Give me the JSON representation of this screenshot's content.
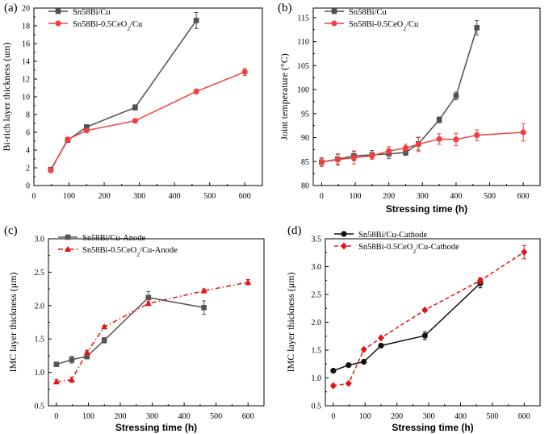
{
  "chart_data": [
    {
      "panel": "(a)",
      "type": "line",
      "xlabel": "Stressing time (h)",
      "ylabel": "Bi-rich layer thickness (um)",
      "xlim": [
        0,
        650
      ],
      "ylim": [
        0,
        20
      ],
      "xticks": [
        0,
        100,
        200,
        300,
        400,
        500,
        600
      ],
      "yticks": [
        0,
        2,
        4,
        6,
        8,
        10,
        12,
        14,
        16,
        18,
        20
      ],
      "legend": "top-left",
      "series": [
        {
          "name": "Sn58Bi/Cu",
          "label": "Sn58Bi/Cu",
          "color": "#505050",
          "marker": "square",
          "dash": "solid",
          "x": [
            48,
            96,
            150,
            288,
            462
          ],
          "y": [
            1.8,
            5.1,
            6.6,
            8.8,
            18.6
          ],
          "err": [
            0.2,
            0.2,
            0.25,
            0.3,
            0.9
          ]
        },
        {
          "name": "Sn58Bi-0.5CeO2/Cu",
          "label": "Sn58Bi-0.5CeO",
          "sub": "2",
          "suffix": "/Cu",
          "color": "#f04040",
          "marker": "circle",
          "dash": "solid",
          "x": [
            48,
            96,
            150,
            288,
            462,
            600
          ],
          "y": [
            1.7,
            5.2,
            6.2,
            7.3,
            10.6,
            12.8
          ],
          "err": [
            0.2,
            0.2,
            0.2,
            0.15,
            0.25,
            0.4
          ]
        }
      ]
    },
    {
      "panel": "(b)",
      "type": "line",
      "xlabel": "Stressing time (h)",
      "ylabel": "Joint temperature (°C)",
      "xlim": [
        -25,
        650
      ],
      "ylim": [
        80,
        117
      ],
      "xticks": [
        0,
        100,
        200,
        300,
        400,
        500,
        600
      ],
      "yticks": [
        80,
        85,
        90,
        95,
        100,
        105,
        110,
        115
      ],
      "legend": "top-left",
      "series": [
        {
          "name": "Sn58Bi/Cu",
          "label": "Sn58Bi/Cu",
          "color": "#505050",
          "marker": "square",
          "dash": "solid",
          "x": [
            0,
            48,
            96,
            150,
            200,
            250,
            288,
            350,
            400,
            462
          ],
          "y": [
            84.9,
            85.5,
            86.2,
            86.4,
            86.6,
            86.9,
            88.7,
            93.7,
            98.7,
            112.9
          ],
          "err": [
            0.8,
            1.0,
            1.0,
            0.9,
            1.0,
            0.6,
            1.3,
            0.6,
            0.8,
            1.5
          ]
        },
        {
          "name": "Sn58Bi-0.5CeO2/Cu",
          "label": "Sn58Bi-0.5CeO",
          "sub": "2",
          "suffix": "/Cu",
          "color": "#f04040",
          "marker": "circle",
          "dash": "solid",
          "x": [
            0,
            48,
            96,
            150,
            200,
            250,
            288,
            350,
            400,
            462,
            600
          ],
          "y": [
            84.9,
            85.4,
            85.8,
            86.2,
            87.2,
            87.8,
            88.6,
            89.7,
            89.6,
            90.5,
            91.1
          ],
          "err": [
            0.9,
            1.2,
            1.3,
            0.7,
            0.9,
            0.8,
            1.5,
            1.1,
            1.3,
            1.1,
            1.8
          ]
        }
      ]
    },
    {
      "panel": "(c)",
      "type": "line",
      "xlabel": "Stressing time (h)",
      "ylabel": "IMC layer thickness (μm)",
      "xlim": [
        -25,
        650
      ],
      "ylim": [
        0.5,
        3.0
      ],
      "xticks": [
        0,
        100,
        200,
        300,
        400,
        500,
        600
      ],
      "yticks": [
        0.5,
        1.0,
        1.5,
        2.0,
        2.5,
        3.0
      ],
      "legend": "top-left",
      "series": [
        {
          "name": "Sn58Bi/Cu-Anode",
          "label": "Sn58Bi/Cu-Anode",
          "color": "#555555",
          "marker": "square",
          "dash": "solid",
          "x": [
            0,
            48,
            96,
            150,
            288,
            462
          ],
          "y": [
            1.12,
            1.19,
            1.24,
            1.48,
            2.12,
            1.97
          ],
          "err": [
            0.03,
            0.05,
            0.04,
            0.04,
            0.09,
            0.1
          ]
        },
        {
          "name": "Sn58Bi-0.5CeO2/Cu-Anode",
          "label": "Sn58Bi-0.5CeO",
          "sub": "2",
          "suffix": "/Cu-Anode",
          "color": "#e01515",
          "marker": "triangle",
          "dash": "dashdot",
          "x": [
            0,
            48,
            96,
            150,
            288,
            462,
            600
          ],
          "y": [
            0.86,
            0.89,
            1.3,
            1.68,
            2.03,
            2.22,
            2.35
          ],
          "err": [
            0.03,
            0.04,
            0.03,
            0.02,
            0.03,
            0.03,
            0.04
          ]
        }
      ]
    },
    {
      "panel": "(d)",
      "type": "line",
      "xlabel": "Stressing time (h)",
      "ylabel": "IMC layer thickness (μm)",
      "xlim": [
        -25,
        650
      ],
      "ylim": [
        0.5,
        3.5
      ],
      "xticks": [
        0,
        100,
        200,
        300,
        400,
        500,
        600
      ],
      "yticks": [
        0.5,
        1.0,
        1.5,
        2.0,
        2.5,
        3.0,
        3.5
      ],
      "legend": "top-left",
      "series": [
        {
          "name": "Sn58Bi/Cu-Cathode",
          "label": "Sn58Bi/Cu-Cathode",
          "color": "#111111",
          "marker": "circle",
          "dash": "solid",
          "x": [
            0,
            48,
            96,
            150,
            288,
            462
          ],
          "y": [
            1.13,
            1.23,
            1.29,
            1.58,
            1.76,
            2.7
          ],
          "err": [
            0.02,
            0.03,
            0.02,
            0.02,
            0.07,
            0.08
          ]
        },
        {
          "name": "Sn58Bi-0.5CeO2/Cu-Cathode",
          "label": "Sn58Bi-0.5CeO",
          "sub": "2",
          "suffix": "/Cu-Cathode",
          "color": "#e01515",
          "marker": "diamond",
          "dash": "dashed",
          "x": [
            0,
            48,
            96,
            150,
            288,
            462,
            600
          ],
          "y": [
            0.86,
            0.9,
            1.51,
            1.72,
            2.22,
            2.75,
            3.26
          ],
          "err": [
            0.03,
            0.02,
            0.02,
            0.02,
            0.02,
            0.05,
            0.12
          ]
        }
      ]
    }
  ]
}
